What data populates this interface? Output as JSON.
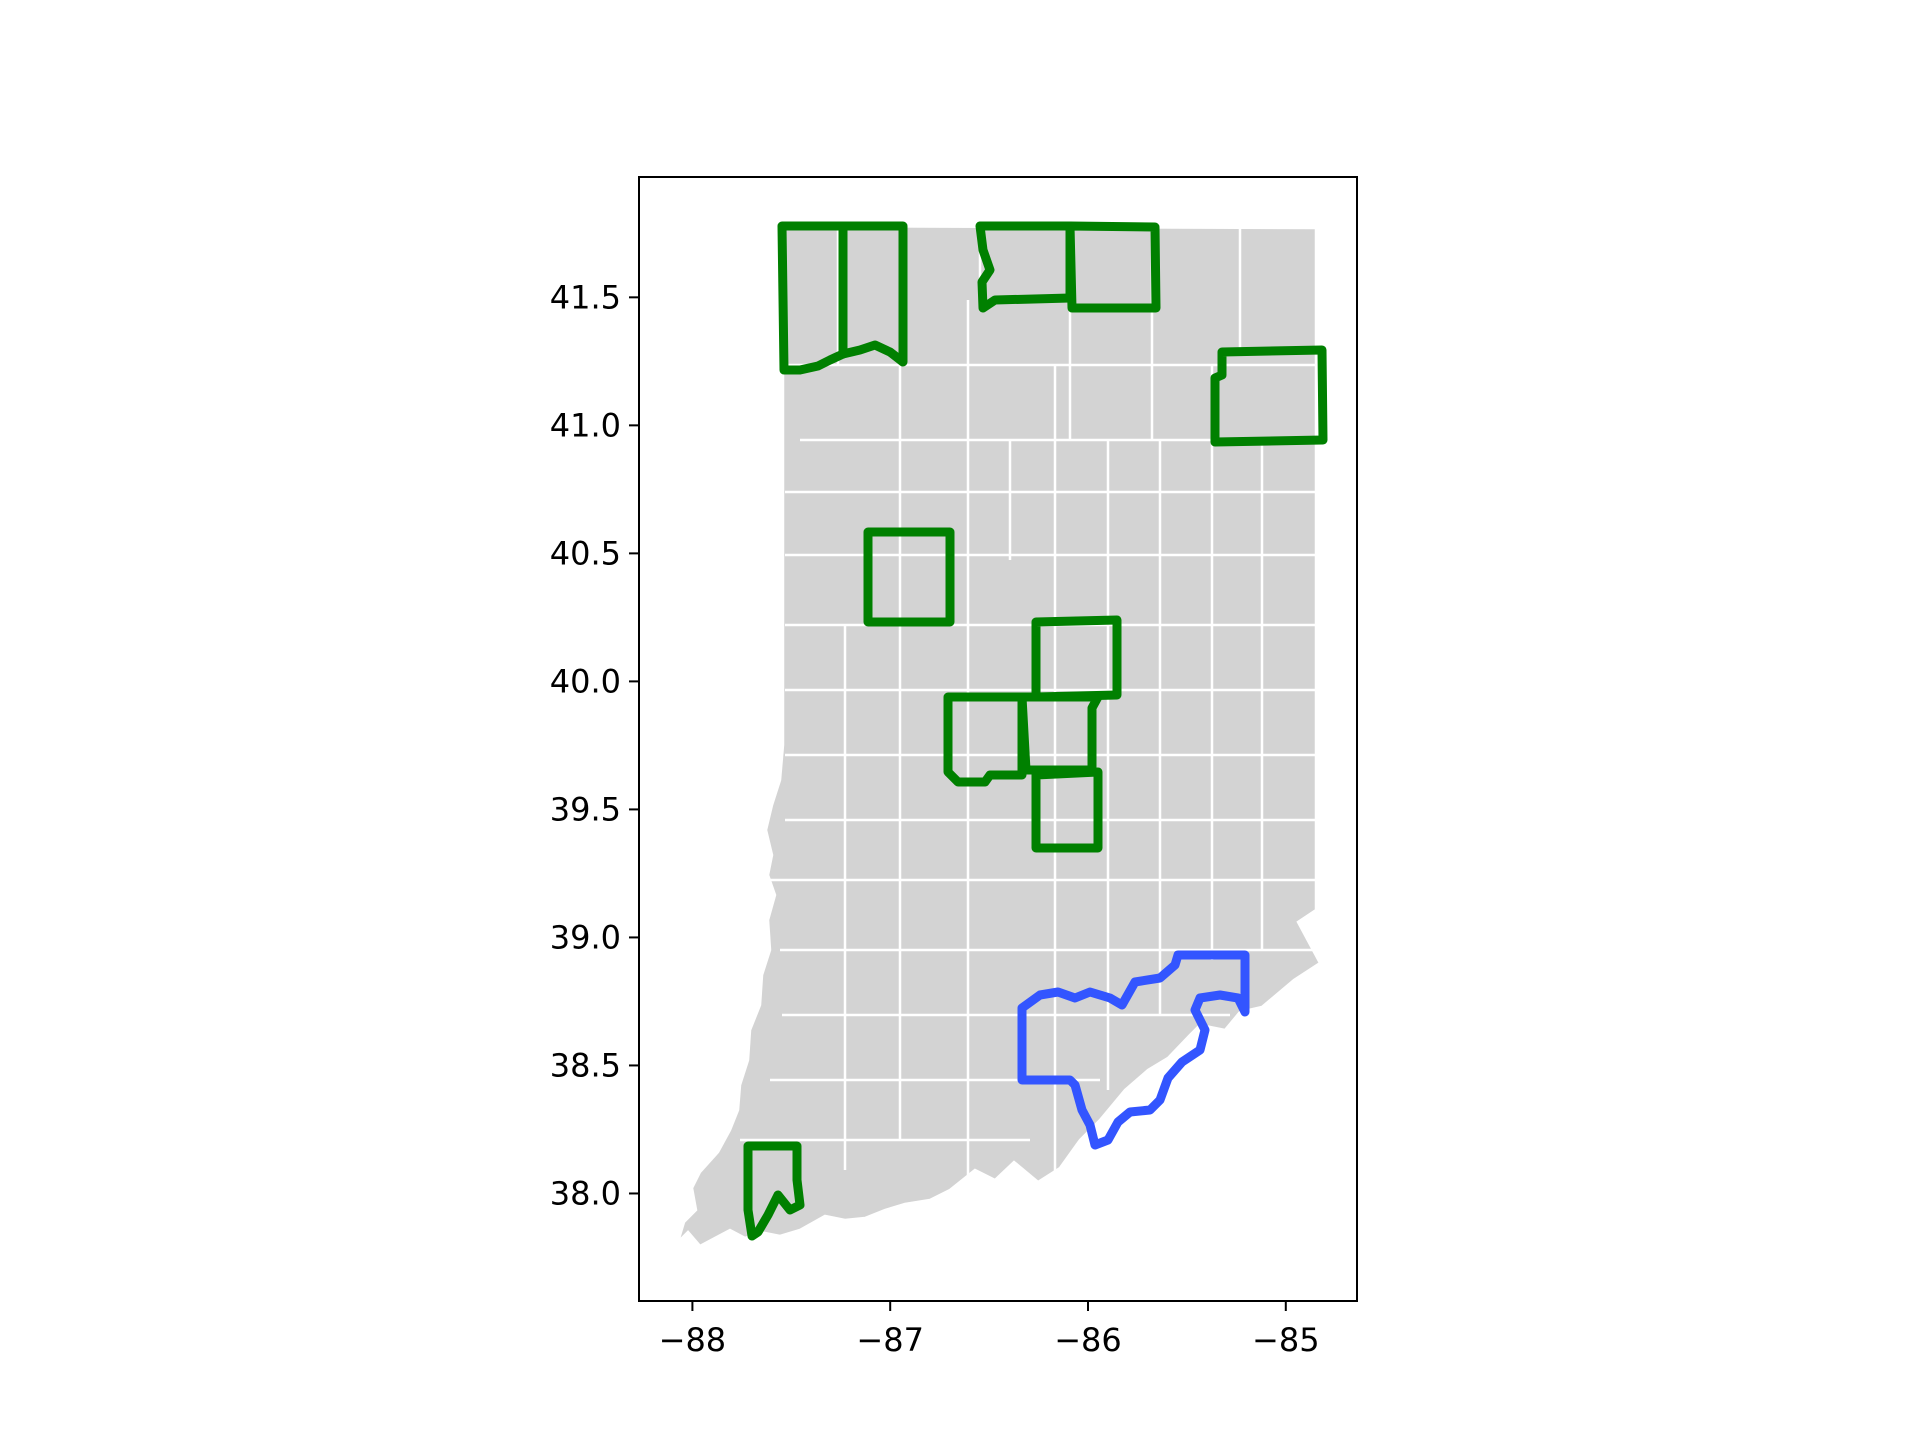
{
  "map": {
    "xaxis": {
      "ticks": [
        {
          "value": -88,
          "label": "−88"
        },
        {
          "value": -87,
          "label": "−87"
        },
        {
          "value": -86,
          "label": "−86"
        },
        {
          "value": -85,
          "label": "−85"
        }
      ],
      "range": [
        -88.27,
        -84.64
      ]
    },
    "yaxis": {
      "ticks": [
        {
          "value": 38.0,
          "label": "38.0"
        },
        {
          "value": 38.5,
          "label": "38.5"
        },
        {
          "value": 39.0,
          "label": "39.0"
        },
        {
          "value": 39.5,
          "label": "39.5"
        },
        {
          "value": 40.0,
          "label": "40.0"
        },
        {
          "value": 40.5,
          "label": "40.5"
        },
        {
          "value": 41.0,
          "label": "41.0"
        },
        {
          "value": 41.5,
          "label": "41.5"
        }
      ],
      "range": [
        37.58,
        41.97
      ]
    },
    "colors": {
      "base_fill": "#d3d3d3",
      "county_border": "#ffffff",
      "highlight_group_a": "#008000",
      "highlight_group_b": "#3355ff",
      "frame": "#000000"
    }
  }
}
